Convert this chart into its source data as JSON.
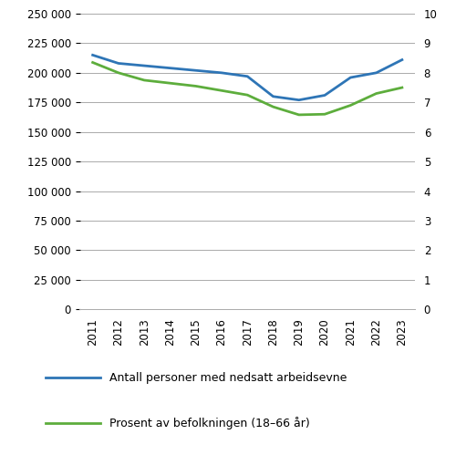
{
  "years": [
    2011,
    2012,
    2013,
    2014,
    2015,
    2016,
    2017,
    2018,
    2019,
    2020,
    2021,
    2022,
    2023
  ],
  "blue_values": [
    215000,
    208000,
    206000,
    204000,
    202000,
    200000,
    197000,
    180000,
    177000,
    181000,
    196000,
    200000,
    211000
  ],
  "green_values": [
    8.35,
    8.0,
    7.75,
    7.65,
    7.55,
    7.4,
    7.25,
    6.85,
    6.58,
    6.6,
    6.9,
    7.3,
    7.5
  ],
  "blue_color": "#2E75B6",
  "green_color": "#5DAD3C",
  "left_ylim": [
    0,
    250000
  ],
  "right_ylim": [
    0,
    10
  ],
  "left_yticks": [
    0,
    25000,
    50000,
    75000,
    100000,
    125000,
    150000,
    175000,
    200000,
    225000,
    250000
  ],
  "right_yticks": [
    0,
    1,
    2,
    3,
    4,
    5,
    6,
    7,
    8,
    9,
    10
  ],
  "left_yticklabels": [
    "0",
    "25 000",
    "50 000",
    "75 000",
    "100 000",
    "125 000",
    "150 000",
    "175 000",
    "200 000",
    "225 000",
    "250 000"
  ],
  "right_yticklabels": [
    "0",
    "1",
    "2",
    "3",
    "4",
    "5",
    "6",
    "7",
    "8",
    "9",
    "10"
  ],
  "legend_blue": "Antall personer med nedsatt arbeidsevne",
  "legend_green": "Prosent av befolkningen (18–66 år)",
  "line_width": 2.0,
  "background_color": "#ffffff",
  "grid_color": "#aaaaaa"
}
